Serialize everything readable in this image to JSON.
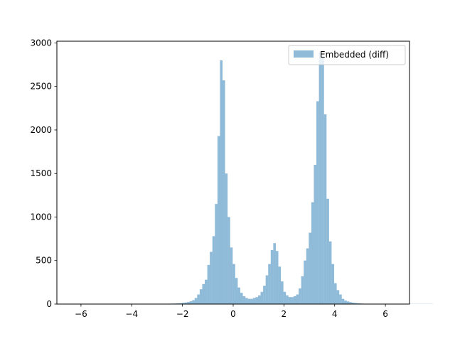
{
  "chart_data": {
    "type": "bar",
    "title": "",
    "xlabel": "",
    "ylabel": "",
    "xlim": [
      -6.95,
      6.95
    ],
    "ylim": [
      0,
      3020
    ],
    "xticks": [
      -6,
      -4,
      -2,
      0,
      2,
      4,
      6
    ],
    "xtick_labels": [
      "−6",
      "−4",
      "−2",
      "0",
      "2",
      "4",
      "6"
    ],
    "yticks": [
      0,
      500,
      1000,
      1500,
      2000,
      2500,
      3000
    ],
    "ytick_labels": [
      "0",
      "500",
      "1000",
      "1500",
      "2000",
      "2500",
      "3000"
    ],
    "grid": false,
    "legend_position": "top-right",
    "bin_range": [
      -6.32,
      6.32
    ],
    "bin_width": 0.1,
    "series": [
      {
        "name": "Embedded (diff)",
        "color": "#1f77b4",
        "alpha": 0.5,
        "counts": [
          2,
          2,
          2,
          2,
          2,
          2,
          2,
          2,
          2,
          2,
          2,
          2,
          2,
          2,
          2,
          2,
          2,
          2,
          2,
          2,
          2,
          2,
          2,
          2,
          2,
          2,
          2,
          2,
          2,
          2,
          2,
          2,
          2,
          2,
          3,
          3,
          3,
          3,
          5,
          5,
          6,
          8,
          10,
          14,
          18,
          24,
          32,
          45,
          70,
          110,
          170,
          230,
          280,
          450,
          600,
          780,
          1150,
          1930,
          2800,
          2570,
          1500,
          1000,
          650,
          460,
          300,
          190,
          130,
          90,
          70,
          60,
          60,
          70,
          80,
          100,
          140,
          210,
          330,
          460,
          620,
          700,
          610,
          430,
          260,
          140,
          100,
          80,
          80,
          90,
          110,
          180,
          320,
          500,
          640,
          820,
          1170,
          1600,
          2330,
          2890,
          2850,
          2180,
          1210,
          720,
          460,
          240,
          160,
          110,
          60,
          40,
          30,
          22,
          16,
          12,
          9,
          7,
          5,
          4,
          3,
          3,
          3,
          3,
          2,
          2,
          2,
          2,
          2,
          2,
          2,
          2,
          2,
          2,
          2,
          2,
          2,
          2,
          2,
          2,
          2,
          2,
          2,
          2,
          2,
          2
        ]
      }
    ]
  }
}
